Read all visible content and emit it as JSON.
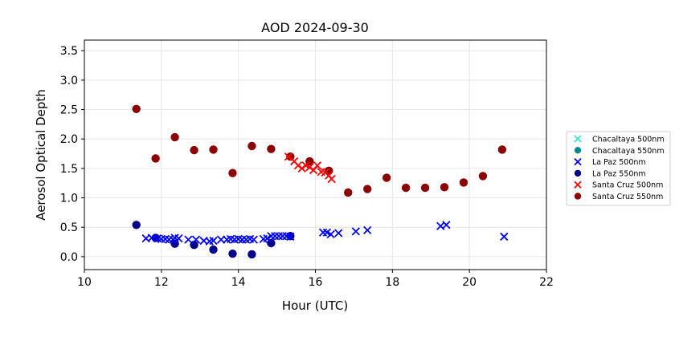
{
  "chart_data": {
    "type": "scatter",
    "title": "AOD 2024-09-30",
    "xlabel": "Hour (UTC)",
    "ylabel": "Aerosol Optical Depth",
    "xlim": [
      10,
      22
    ],
    "ylim": [
      -0.22,
      3.68
    ],
    "xticks": [
      10,
      12,
      14,
      16,
      18,
      20,
      22
    ],
    "yticks": [
      0.0,
      0.5,
      1.0,
      1.5,
      2.0,
      2.5,
      3.0,
      3.5
    ],
    "xtick_labels": [
      "10",
      "12",
      "14",
      "16",
      "18",
      "20",
      "22"
    ],
    "ytick_labels": [
      "0.0",
      "0.5",
      "1.0",
      "1.5",
      "2.0",
      "2.5",
      "3.0",
      "3.5"
    ],
    "grid": true,
    "legend_position": "outside-right",
    "series": [
      {
        "name": "Chacaltaya 500nm",
        "marker": "x",
        "color": "#40e0d0",
        "x": [],
        "y": []
      },
      {
        "name": "Chacaltaya 550nm",
        "marker": "o",
        "color": "#008b8b",
        "x": [],
        "y": []
      },
      {
        "name": "La Paz 500nm",
        "marker": "x",
        "color": "#0000ff",
        "x": [
          11.6,
          11.75,
          11.9,
          12.0,
          12.1,
          12.2,
          12.3,
          12.35,
          12.45,
          12.7,
          12.9,
          13.1,
          13.25,
          13.35,
          13.55,
          13.7,
          13.8,
          13.9,
          14.0,
          14.1,
          14.2,
          14.3,
          14.4,
          14.65,
          14.75,
          14.85,
          14.95,
          15.05,
          15.15,
          15.25,
          15.35,
          16.2,
          16.3,
          16.4,
          16.6,
          17.05,
          17.35,
          19.25,
          19.4,
          20.9
        ],
        "y": [
          0.31,
          0.32,
          0.31,
          0.3,
          0.3,
          0.29,
          0.29,
          0.32,
          0.31,
          0.29,
          0.29,
          0.27,
          0.26,
          0.27,
          0.29,
          0.29,
          0.3,
          0.29,
          0.3,
          0.29,
          0.29,
          0.3,
          0.29,
          0.3,
          0.31,
          0.35,
          0.35,
          0.35,
          0.35,
          0.35,
          0.34,
          0.41,
          0.41,
          0.38,
          0.4,
          0.43,
          0.45,
          0.52,
          0.54,
          0.34
        ]
      },
      {
        "name": "La Paz 550nm",
        "marker": "o",
        "color": "#00008b",
        "x": [
          11.35,
          11.85,
          12.35,
          12.85,
          13.35,
          13.85,
          14.35,
          14.85,
          15.35
        ],
        "y": [
          0.54,
          0.32,
          0.22,
          0.2,
          0.12,
          0.05,
          0.04,
          0.23,
          0.35
        ]
      },
      {
        "name": "Santa Cruz 500nm",
        "marker": "x",
        "color": "#ff0000",
        "x": [
          15.3,
          15.45,
          15.55,
          15.65,
          15.75,
          15.85,
          15.95,
          16.05,
          16.15,
          16.25,
          16.35,
          16.42
        ],
        "y": [
          1.7,
          1.62,
          1.55,
          1.5,
          1.55,
          1.52,
          1.47,
          1.55,
          1.44,
          1.43,
          1.38,
          1.32
        ]
      },
      {
        "name": "Santa Cruz 550nm",
        "marker": "o",
        "color": "#8b0000",
        "x": [
          11.35,
          11.85,
          12.35,
          12.85,
          13.35,
          13.85,
          14.35,
          14.85,
          15.35,
          15.85,
          16.35,
          16.85,
          17.35,
          17.85,
          18.35,
          18.85,
          19.35,
          19.85,
          20.35,
          20.85
        ],
        "y": [
          2.51,
          1.67,
          2.03,
          1.81,
          1.82,
          1.42,
          1.88,
          1.83,
          1.7,
          1.62,
          1.46,
          1.09,
          1.15,
          1.34,
          1.17,
          1.17,
          1.18,
          1.26,
          1.37,
          1.82
        ]
      }
    ]
  }
}
